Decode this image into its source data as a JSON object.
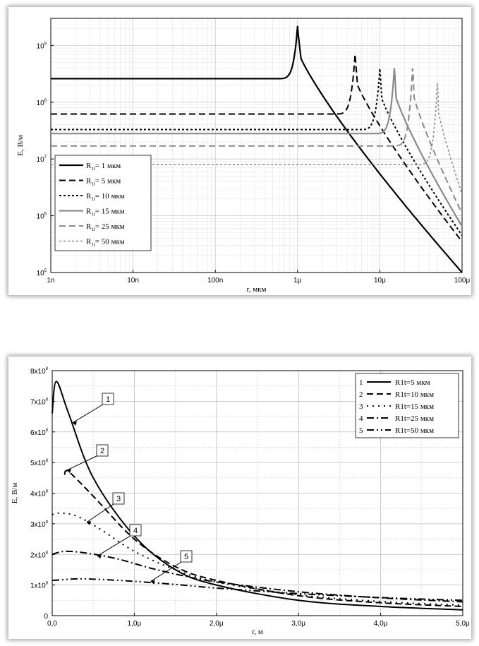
{
  "chart_data": [
    {
      "type": "line",
      "title": "",
      "xlabel": "r, мкм",
      "ylabel": "E, В/м",
      "x_scale": "log",
      "y_scale": "log",
      "xlim": [
        1e-09,
        0.0001
      ],
      "ylim": [
        100000.0,
        3000000000.0
      ],
      "x_ticks": [
        {
          "value": 1e-09,
          "label": "1n"
        },
        {
          "value": 1e-08,
          "label": "10n"
        },
        {
          "value": 1e-07,
          "label": "100n"
        },
        {
          "value": 1e-06,
          "label": "1μ"
        },
        {
          "value": 1e-05,
          "label": "10μ"
        },
        {
          "value": 0.0001,
          "label": "100μ"
        }
      ],
      "y_ticks": [
        {
          "value": 100000.0,
          "base": "10",
          "exp": "5"
        },
        {
          "value": 1000000.0,
          "base": "10",
          "exp": "6"
        },
        {
          "value": 10000000.0,
          "base": "10",
          "exp": "7"
        },
        {
          "value": 100000000.0,
          "base": "10",
          "exp": "8"
        },
        {
          "value": 1000000000.0,
          "base": "10",
          "exp": "9"
        }
      ],
      "grid": true,
      "legend_position": "bottom-left",
      "series": [
        {
          "name": "R1t = 1 мкм",
          "label_main": "R",
          "label_sub": "1t",
          "label_rest": "= 1 мкм",
          "color": "#000000",
          "dash": "",
          "width": 2.2,
          "R": 1e-06,
          "E_plateau": 260000000.0,
          "E_peak": 2200000000.0,
          "E_end": 100000.0
        },
        {
          "name": "R1t = 5 мкм",
          "label_main": "R",
          "label_sub": "1t",
          "label_rest": "= 5 мкм",
          "color": "#000000",
          "dash": "9,5",
          "width": 2.0,
          "R": 5e-06,
          "E_plateau": 62000000.0,
          "E_peak": 700000000.0,
          "E_end": 350000.0
        },
        {
          "name": "R1t = 10 мкм",
          "label_main": "R",
          "label_sub": "1t",
          "label_rest": "= 10 мкм",
          "color": "#000000",
          "dash": "3,3",
          "width": 2.0,
          "R": 1e-05,
          "E_plateau": 33000000.0,
          "E_peak": 390000000.0,
          "E_end": 450000.0
        },
        {
          "name": "R1t = 15 мкм",
          "label_main": "R",
          "label_sub": "1t",
          "label_rest": "= 15 мкм",
          "color": "#8a8a8a",
          "dash": "",
          "width": 2.2,
          "R": 1.5e-05,
          "E_plateau": 28000000.0,
          "E_peak": 400000000.0,
          "E_end": 650000.0
        },
        {
          "name": "R1t = 25 мкм",
          "label_main": "R",
          "label_sub": "1t",
          "label_rest": "= 25 мкм",
          "color": "#8a8a8a",
          "dash": "9,5",
          "width": 2.0,
          "R": 2.5e-05,
          "E_plateau": 17000000.0,
          "E_peak": 400000000.0,
          "E_end": 1100000.0
        },
        {
          "name": "R1t = 50 мкм",
          "label_main": "R",
          "label_sub": "1t",
          "label_rest": "= 50 мкм",
          "color": "#8a8a8a",
          "dash": "3,3",
          "width": 1.6,
          "R": 5e-05,
          "E_plateau": 8000000.0,
          "E_peak": 220000000.0,
          "E_end": 2400000.0
        }
      ]
    },
    {
      "type": "line",
      "title": "",
      "xlabel": "r, м",
      "ylabel": "E, В/м",
      "xlim": [
        0,
        5e-06
      ],
      "ylim": [
        0,
        800000000.0
      ],
      "x_ticks": [
        {
          "value": 0,
          "label": "0,0"
        },
        {
          "value": 1e-06,
          "label": "1,0μ"
        },
        {
          "value": 2e-06,
          "label": "2,0μ"
        },
        {
          "value": 3e-06,
          "label": "3,0μ"
        },
        {
          "value": 4e-06,
          "label": "4,0μ"
        },
        {
          "value": 5e-06,
          "label": "5,0μ"
        }
      ],
      "y_ticks": [
        {
          "value": 0,
          "label": "0"
        },
        {
          "value": 100000000.0,
          "mant": "1x10",
          "exp": "8"
        },
        {
          "value": 200000000.0,
          "mant": "2x10",
          "exp": "8"
        },
        {
          "value": 300000000.0,
          "mant": "3x10",
          "exp": "8"
        },
        {
          "value": 400000000.0,
          "mant": "4x10",
          "exp": "8"
        },
        {
          "value": 500000000.0,
          "mant": "5x10",
          "exp": "8"
        },
        {
          "value": 600000000.0,
          "mant": "6x10",
          "exp": "8"
        },
        {
          "value": 700000000.0,
          "mant": "7x10",
          "exp": "8"
        },
        {
          "value": 800000000.0,
          "mant": "8x10",
          "exp": "8"
        }
      ],
      "grid": true,
      "legend_position": "top-right",
      "series": [
        {
          "id": "1",
          "name": "R1t=5 мкм",
          "legend_label": "R1t=5 мкм",
          "dash": "",
          "width": 2.0,
          "x": [
            0,
            5e-08,
            2e-07,
            5e-07,
            1e-06,
            1.5e-06,
            2e-06,
            3e-06,
            4e-06,
            5e-06
          ],
          "y": [
            660000000.0,
            765000000.0,
            660000000.0,
            450000000.0,
            260000000.0,
            150000000.0,
            100000000.0,
            50000000.0,
            30000000.0,
            19000000.0
          ]
        },
        {
          "id": "2",
          "name": "R1t=10 мкм",
          "legend_label": "R1t=10 мкм",
          "dash": "9,5",
          "width": 2.0,
          "x": [
            1.5e-07,
            2e-07,
            5e-07,
            1e-06,
            1.5e-06,
            2e-06,
            3e-06,
            4e-06,
            5e-06
          ],
          "y": [
            460000000.0,
            470000000.0,
            390000000.0,
            250000000.0,
            160000000.0,
            115000000.0,
            65000000.0,
            42000000.0,
            30000000.0
          ]
        },
        {
          "id": "3",
          "name": "R1t=15 мкм",
          "legend_label": "R1t=15 мкм",
          "dash": "2,6",
          "width": 2.0,
          "x": [
            0,
            1e-07,
            3e-07,
            6e-07,
            1e-06,
            1.5e-06,
            2e-06,
            3e-06,
            4e-06,
            5e-06
          ],
          "y": [
            330000000.0,
            335000000.0,
            325000000.0,
            280000000.0,
            210000000.0,
            150000000.0,
            110000000.0,
            68000000.0,
            46000000.0,
            34000000.0
          ]
        },
        {
          "id": "4",
          "name": "R1t=25 мкм",
          "legend_label": "R1t=25 мкм",
          "dash": "10,4,2,4",
          "width": 2.0,
          "x": [
            0,
            1.5e-07,
            4e-07,
            8e-07,
            1.2e-06,
            1.6e-06,
            2e-06,
            3e-06,
            4e-06,
            5e-06
          ],
          "y": [
            200000000.0,
            210000000.0,
            205000000.0,
            185000000.0,
            155000000.0,
            130000000.0,
            110000000.0,
            78000000.0,
            58000000.0,
            45000000.0
          ]
        },
        {
          "id": "5",
          "name": "R1t=50 мкм",
          "legend_label": "R1t=50 мкм",
          "dash": "10,4,2,4,2,4",
          "width": 2.0,
          "x": [
            0,
            3e-07,
            6e-07,
            1e-06,
            1.5e-06,
            2e-06,
            3e-06,
            4e-06,
            5e-06
          ],
          "y": [
            115000000.0,
            120000000.0,
            118000000.0,
            112000000.0,
            102000000.0,
            90000000.0,
            72000000.0,
            59000000.0,
            50000000.0
          ]
        }
      ],
      "callouts": [
        {
          "label": "1",
          "target_series": "1"
        },
        {
          "label": "2",
          "target_series": "2"
        },
        {
          "label": "3",
          "target_series": "3"
        },
        {
          "label": "4",
          "target_series": "4"
        },
        {
          "label": "5",
          "target_series": "5"
        }
      ]
    }
  ]
}
